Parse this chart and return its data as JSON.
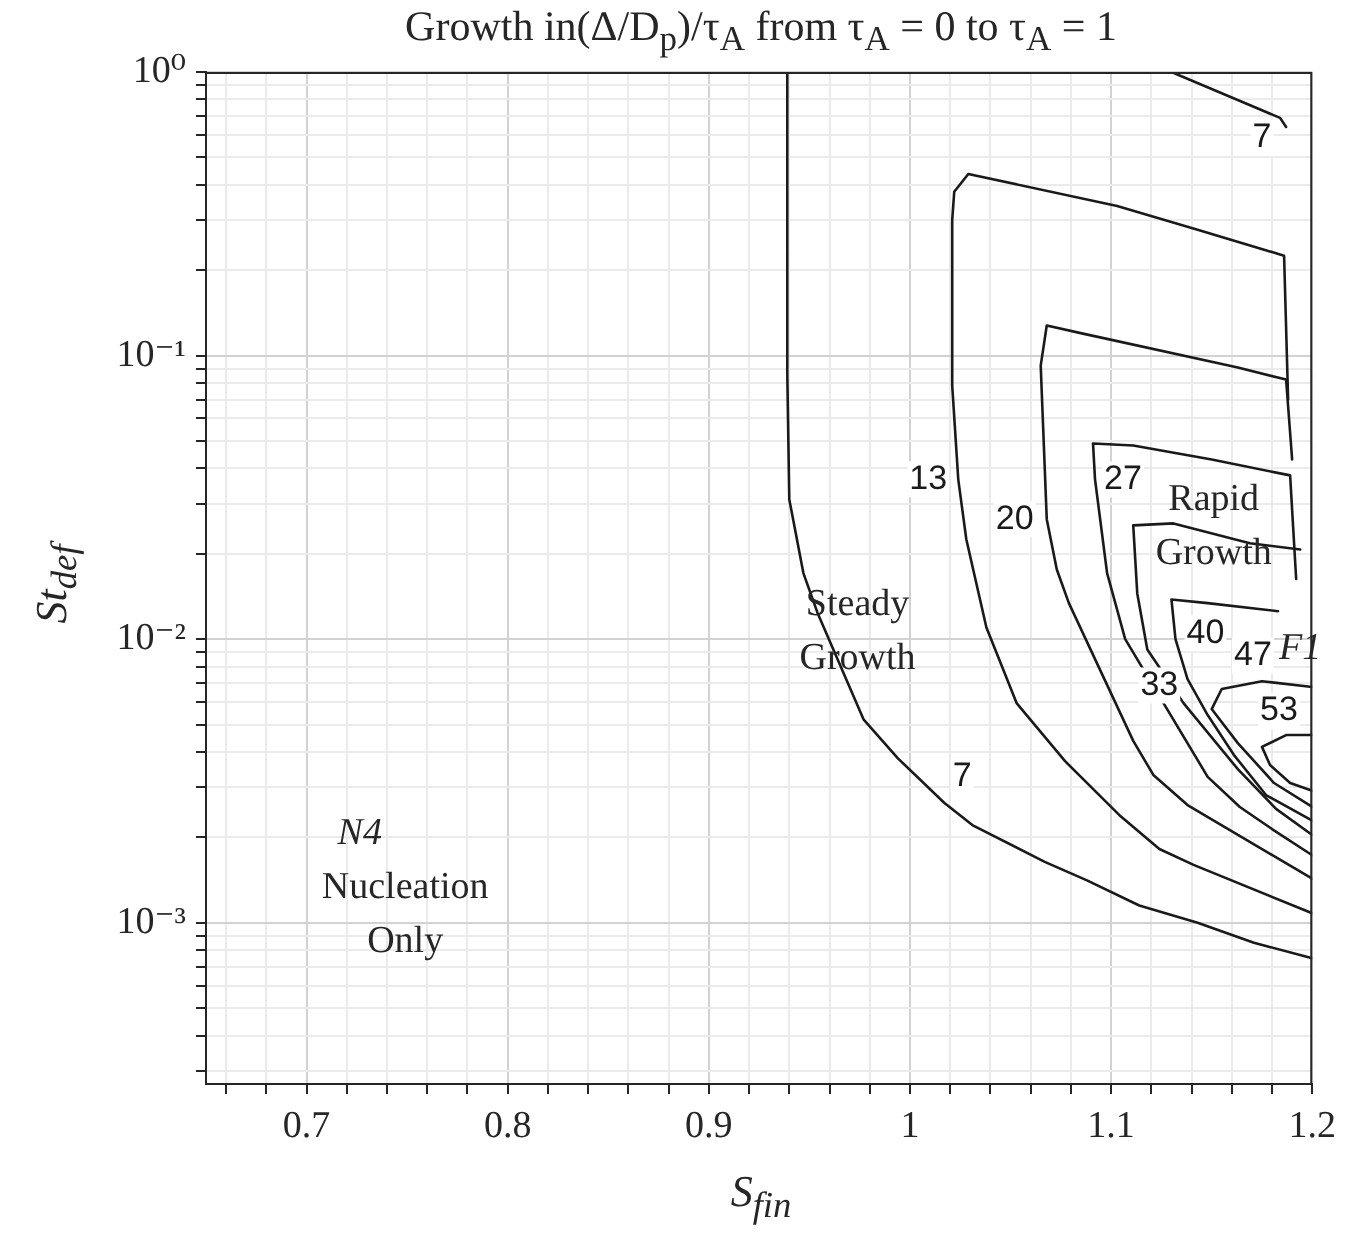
{
  "chart_data": {
    "type": "line",
    "title": "Growth in(Δ/D$_{p}$)/τ$_{A}$ from τ$_{A}$ = 0 to τ$_{A}$ = 1",
    "xlabel": "S$_{fin}$",
    "ylabel": "St$_{def}$",
    "xlim": [
      0.65,
      1.2
    ],
    "ylim": [
      0.00027,
      1
    ],
    "log": "y",
    "xticks": [
      {
        "value": 0.66,
        "label": null
      },
      {
        "value": 0.68,
        "label": null
      },
      0.7,
      {
        "value": 0.72,
        "label": null
      },
      {
        "value": 0.74,
        "label": null
      },
      {
        "value": 0.76,
        "label": null
      },
      {
        "value": 0.78,
        "label": null
      },
      0.8,
      {
        "value": 0.82,
        "label": null
      },
      {
        "value": 0.84,
        "label": null
      },
      {
        "value": 0.86,
        "label": null
      },
      {
        "value": 0.88,
        "label": null
      },
      0.9,
      {
        "value": 0.92,
        "label": null
      },
      {
        "value": 0.94,
        "label": null
      },
      {
        "value": 0.96,
        "label": null
      },
      {
        "value": 0.98,
        "label": null
      },
      1,
      {
        "value": 1.02,
        "label": null
      },
      {
        "value": 1.04,
        "label": null
      },
      {
        "value": 1.06,
        "label": null
      },
      {
        "value": 1.08,
        "label": null
      },
      1.1,
      {
        "value": 1.12,
        "label": null
      },
      {
        "value": 1.14,
        "label": null
      },
      {
        "value": 1.16,
        "label": null
      },
      {
        "value": 1.18,
        "label": null
      },
      1.2
    ],
    "yticks": [
      {
        "value": 0.0003,
        "label": null
      },
      {
        "value": 0.0004,
        "label": null
      },
      {
        "value": 0.0005,
        "label": null
      },
      {
        "value": 0.0006,
        "label": null
      },
      {
        "value": 0.0007,
        "label": null
      },
      {
        "value": 0.0008,
        "label": null
      },
      {
        "value": 0.0009,
        "label": null
      },
      {
        "value": 0.001,
        "label": "10⁻³"
      },
      {
        "value": 0.002,
        "label": null
      },
      {
        "value": 0.003,
        "label": null
      },
      {
        "value": 0.004,
        "label": null
      },
      {
        "value": 0.005,
        "label": null
      },
      {
        "value": 0.006,
        "label": null
      },
      {
        "value": 0.007,
        "label": null
      },
      {
        "value": 0.008,
        "label": null
      },
      {
        "value": 0.009,
        "label": null
      },
      {
        "value": 0.01,
        "label": "10⁻²"
      },
      {
        "value": 0.02,
        "label": null
      },
      {
        "value": 0.03,
        "label": null
      },
      {
        "value": 0.04,
        "label": null
      },
      {
        "value": 0.05,
        "label": null
      },
      {
        "value": 0.06,
        "label": null
      },
      {
        "value": 0.07,
        "label": null
      },
      {
        "value": 0.08,
        "label": null
      },
      {
        "value": 0.09,
        "label": null
      },
      {
        "value": 0.1,
        "label": "10⁻¹"
      },
      {
        "value": 0.2,
        "label": null
      },
      {
        "value": 0.3,
        "label": null
      },
      {
        "value": 0.4,
        "label": null
      },
      {
        "value": 0.5,
        "label": null
      },
      {
        "value": 0.6,
        "label": null
      },
      {
        "value": 0.7,
        "label": null
      },
      {
        "value": 0.8,
        "label": null
      },
      {
        "value": 0.9,
        "label": null
      },
      {
        "value": 1,
        "label": "10⁰"
      }
    ],
    "grid": true,
    "marker": "none",
    "line_style": "solid",
    "series": [
      {
        "name": "7",
        "color": "#1a1a1a",
        "x": [
          0.939,
          0.939,
          0.94,
          0.947,
          0.954,
          0.964,
          0.977,
          0.994,
          1.017,
          1.031,
          1.067,
          1.088,
          1.114,
          1.143,
          1.171,
          1.2
        ],
        "values": [
          1,
          0.0864,
          0.0311,
          0.0171,
          0.0124,
          0.0085,
          0.0052,
          0.0038,
          0.00265,
          0.00221,
          0.00164,
          0.00141,
          0.00115,
          0.001,
          0.00085,
          0.00075
        ]
      },
      {
        "name": "7",
        "color": "#1a1a1a",
        "x": [
          1.13,
          1.17,
          1.184,
          1.187
        ],
        "values": [
          1,
          0.759,
          0.689,
          0.64
        ]
      },
      {
        "name": "13",
        "color": "#1a1a1a",
        "x": [
          1.188,
          1.186,
          1.143,
          1.103,
          1.029,
          1.022,
          1.021,
          1.021,
          1.024,
          1.028,
          1.038,
          1.053,
          1.077,
          1.104,
          1.124,
          1.141,
          1.2
        ],
        "values": [
          0.07,
          0.225,
          0.278,
          0.337,
          0.437,
          0.378,
          0.301,
          0.0784,
          0.0366,
          0.0225,
          0.011,
          0.00595,
          0.00372,
          0.0024,
          0.00182,
          0.0016,
          0.00108
        ]
      },
      {
        "name": "20",
        "color": "#1a1a1a",
        "x": [
          1.19,
          1.187,
          1.163,
          1.086,
          1.068,
          1.065,
          1.068,
          1.073,
          1.079,
          1.111,
          1.121,
          1.138,
          1.2
        ],
        "values": [
          0.043,
          0.0823,
          0.0907,
          0.1195,
          0.1276,
          0.0922,
          0.0265,
          0.0176,
          0.0134,
          0.00438,
          0.00332,
          0.0026,
          0.00143
        ]
      },
      {
        "name": "27",
        "color": "#1a1a1a",
        "x": [
          1.192,
          1.189,
          1.15,
          1.111,
          1.091,
          1.092,
          1.098,
          1.107,
          1.148,
          1.164,
          1.18,
          1.2
        ],
        "values": [
          0.0163,
          0.0378,
          0.043,
          0.0482,
          0.049,
          0.0366,
          0.0171,
          0.01,
          0.00327,
          0.00256,
          0.00214,
          0.00173
        ]
      },
      {
        "name": "33",
        "color": "#1a1a1a",
        "x": [
          1.194,
          1.169,
          1.131,
          1.111,
          1.113,
          1.118,
          1.136,
          1.163,
          1.182,
          1.2
        ],
        "values": [
          0.0207,
          0.0218,
          0.0256,
          0.0252,
          0.0145,
          0.0092,
          0.00595,
          0.00348,
          0.00252,
          0.00204
        ]
      },
      {
        "name": "40",
        "color": "#1a1a1a",
        "x": [
          1.183,
          1.148,
          1.13,
          1.132,
          1.138,
          1.148,
          1.161,
          1.177,
          1.2
        ],
        "values": [
          0.01255,
          0.0134,
          0.0138,
          0.01,
          0.00723,
          0.0054,
          0.00391,
          0.00282,
          0.00229
        ]
      },
      {
        "name": "47",
        "color": "#1a1a1a",
        "x": [
          1.2,
          1.175,
          1.155,
          1.15,
          1.163,
          1.181,
          1.2
        ],
        "values": [
          0.00678,
          0.00711,
          0.00667,
          0.00567,
          0.0043,
          0.00311,
          0.00256
        ]
      },
      {
        "name": "53",
        "color": "#1a1a1a",
        "x": [
          1.2,
          1.187,
          1.175,
          1.179,
          1.189,
          1.2
        ],
        "values": [
          0.00459,
          0.00459,
          0.00417,
          0.0036,
          0.00311,
          0.00292
        ]
      }
    ],
    "annotations": [
      "N4",
      "Nucleation Only",
      "Steady Growth",
      {
        "text": "Rapid Growth",
        "x": 1.151,
        "y": 0.0248
      },
      "F1"
    ]
  }
}
